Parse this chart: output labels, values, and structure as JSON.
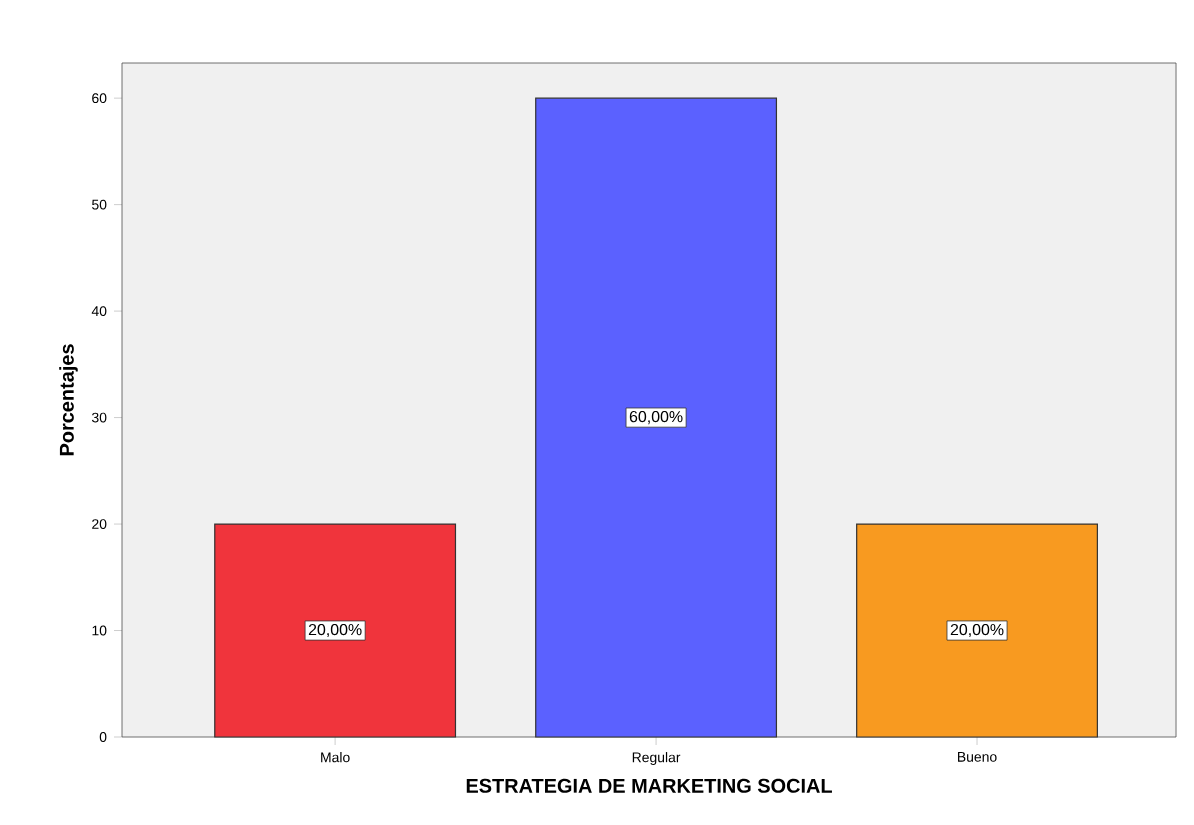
{
  "chart_data": {
    "type": "bar",
    "xlabel": "ESTRATEGIA DE MARKETING SOCIAL",
    "ylabel": "Porcentajes",
    "categories": [
      "Malo",
      "Regular",
      "Bueno"
    ],
    "values": [
      20,
      60,
      20
    ],
    "colors": [
      "#f0343c",
      "#5b61ff",
      "#f89a20"
    ],
    "value_labels": [
      "20,00%",
      "60,00%",
      "20,00%"
    ],
    "ylim": [
      0,
      63.3
    ],
    "yticks": [
      0,
      10,
      20,
      30,
      40,
      50,
      60
    ]
  }
}
